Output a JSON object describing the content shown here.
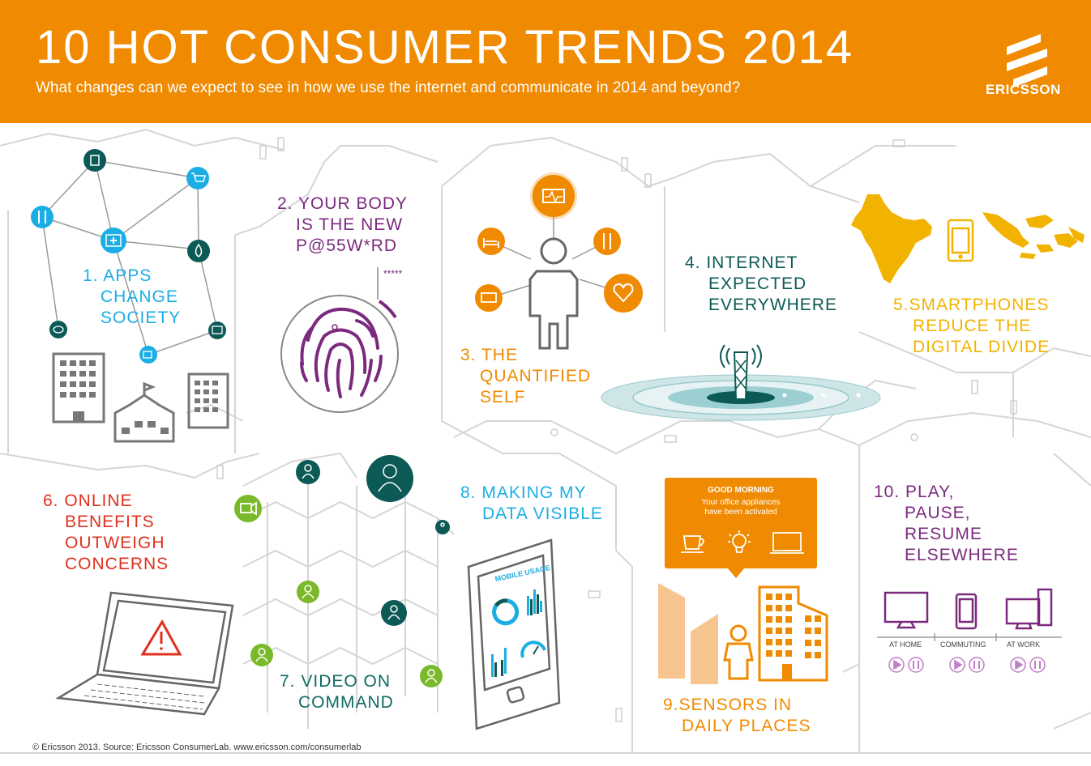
{
  "header": {
    "title": "10 HOT CONSUMER TRENDS 2014",
    "subtitle": "What changes can we expect to see in how we use the internet and communicate in 2014 and beyond?",
    "brand": "ERICSSON"
  },
  "colors": {
    "header_bg": "#f08a00",
    "teal": "#1baee4",
    "purple": "#7b2a7e",
    "orange": "#f08a00",
    "dark_teal": "#0c5a56",
    "yellow": "#f2b300",
    "red": "#e0301e",
    "green": "#7ab929"
  },
  "trends": {
    "t1": {
      "line1": "1. APPS",
      "line2": "CHANGE",
      "line3": "SOCIETY"
    },
    "t2": {
      "line1": "2. YOUR BODY",
      "line2": "IS THE NEW",
      "line3": "P@55W*RD",
      "stars": "*****"
    },
    "t3": {
      "line1": "3. THE",
      "line2": "QUANTIFIED",
      "line3": "SELF"
    },
    "t4": {
      "line1": "4. INTERNET",
      "line2": "EXPECTED",
      "line3": "EVERYWHERE"
    },
    "t5": {
      "line1": "5.SMARTPHONES",
      "line2": "REDUCE THE",
      "line3": "DIGITAL DIVIDE"
    },
    "t6": {
      "line1": "6. ONLINE",
      "line2": "BENEFITS",
      "line3": "OUTWEIGH",
      "line4": "CONCERNS"
    },
    "t7": {
      "line1": "7. VIDEO ON",
      "line2": "COMMAND"
    },
    "t8": {
      "line1": "8. MAKING MY",
      "line2": "DATA VISIBLE",
      "tablet_label": "MOBILE USAGE"
    },
    "t9": {
      "line1": "9.SENSORS IN",
      "line2": "DAILY PLACES",
      "bubble_title": "GOOD MORNING",
      "bubble_line1": "Your office appliances",
      "bubble_line2": "have been activated"
    },
    "t10": {
      "line1": "10. PLAY,",
      "line2": "PAUSE,",
      "line3": "RESUME",
      "line4": "ELSEWHERE",
      "place1": "AT HOME",
      "place2": "COMMUTING",
      "place3": "AT WORK"
    }
  },
  "icons": [
    "trash-icon",
    "cart-icon",
    "cutlery-icon",
    "medkit-icon",
    "water-drop-icon",
    "chat-icon",
    "tv-icon",
    "money-icon",
    "fingerprint-icon",
    "heartbeat-icon",
    "bed-icon",
    "fork-knife-icon",
    "heart-icon",
    "battery-icon",
    "person-icon",
    "cell-tower-icon",
    "phone-icon",
    "warning-icon",
    "laptop-icon",
    "video-camera-icon",
    "coffee-cup-icon",
    "lightbulb-icon",
    "monitor-icon",
    "play-icon",
    "pause-icon"
  ],
  "footer": "© Ericsson 2013. Source: Ericsson ConsumerLab. www.ericsson.com/consumerlab"
}
